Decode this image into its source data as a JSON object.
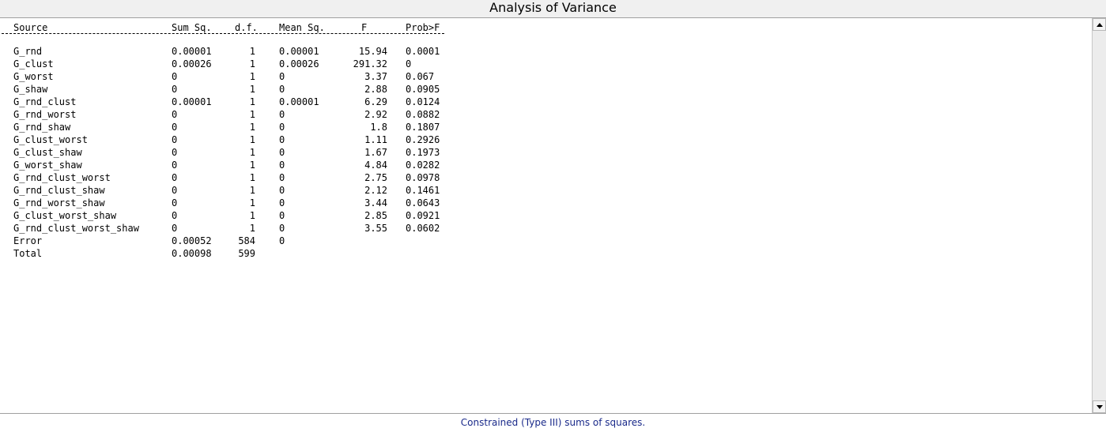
{
  "window": {
    "title": "Analysis of Variance"
  },
  "table": {
    "headers": {
      "source": "Source",
      "sum_sq": "Sum Sq.",
      "df": "d.f.",
      "mean_sq": "Mean Sq.",
      "f": "F",
      "prob": "Prob>F"
    },
    "separator": "-----------------------------------------------------------------------------",
    "rows": [
      {
        "source": "G_rnd",
        "sum_sq": "0.00001",
        "df": "1",
        "mean_sq": "0.00001",
        "f": "15.94",
        "prob": "0.0001"
      },
      {
        "source": "G_clust",
        "sum_sq": "0.00026",
        "df": "1",
        "mean_sq": "0.00026",
        "f": "291.32",
        "prob": "0"
      },
      {
        "source": "G_worst",
        "sum_sq": "0",
        "df": "1",
        "mean_sq": "0",
        "f": "3.37",
        "prob": "0.067"
      },
      {
        "source": "G_shaw",
        "sum_sq": "0",
        "df": "1",
        "mean_sq": "0",
        "f": "2.88",
        "prob": "0.0905"
      },
      {
        "source": "G_rnd_clust",
        "sum_sq": "0.00001",
        "df": "1",
        "mean_sq": "0.00001",
        "f": "6.29",
        "prob": "0.0124"
      },
      {
        "source": "G_rnd_worst",
        "sum_sq": "0",
        "df": "1",
        "mean_sq": "0",
        "f": "2.92",
        "prob": "0.0882"
      },
      {
        "source": "G_rnd_shaw",
        "sum_sq": "0",
        "df": "1",
        "mean_sq": "0",
        "f": "1.8",
        "prob": "0.1807"
      },
      {
        "source": "G_clust_worst",
        "sum_sq": "0",
        "df": "1",
        "mean_sq": "0",
        "f": "1.11",
        "prob": "0.2926"
      },
      {
        "source": "G_clust_shaw",
        "sum_sq": "0",
        "df": "1",
        "mean_sq": "0",
        "f": "1.67",
        "prob": "0.1973"
      },
      {
        "source": "G_worst_shaw",
        "sum_sq": "0",
        "df": "1",
        "mean_sq": "0",
        "f": "4.84",
        "prob": "0.0282"
      },
      {
        "source": "G_rnd_clust_worst",
        "sum_sq": "0",
        "df": "1",
        "mean_sq": "0",
        "f": "2.75",
        "prob": "0.0978"
      },
      {
        "source": "G_rnd_clust_shaw",
        "sum_sq": "0",
        "df": "1",
        "mean_sq": "0",
        "f": "2.12",
        "prob": "0.1461"
      },
      {
        "source": "G_rnd_worst_shaw",
        "sum_sq": "0",
        "df": "1",
        "mean_sq": "0",
        "f": "3.44",
        "prob": "0.0643"
      },
      {
        "source": "G_clust_worst_shaw",
        "sum_sq": "0",
        "df": "1",
        "mean_sq": "0",
        "f": "2.85",
        "prob": "0.0921"
      },
      {
        "source": "G_rnd_clust_worst_shaw",
        "sum_sq": "0",
        "df": "1",
        "mean_sq": "0",
        "f": "3.55",
        "prob": "0.0602"
      },
      {
        "source": "Error",
        "sum_sq": "0.00052",
        "df": "584",
        "mean_sq": "0",
        "f": "",
        "prob": ""
      },
      {
        "source": "Total",
        "sum_sq": "0.00098",
        "df": "599",
        "mean_sq": "",
        "f": "",
        "prob": ""
      }
    ]
  },
  "footer": {
    "note": "Constrained (Type III) sums of squares."
  },
  "scrollbar": {
    "up_icon": "arrow-up-icon",
    "down_icon": "arrow-down-icon"
  },
  "colors": {
    "footer_text": "#1a2a8a",
    "titlebar_bg": "#f0f0f0"
  }
}
